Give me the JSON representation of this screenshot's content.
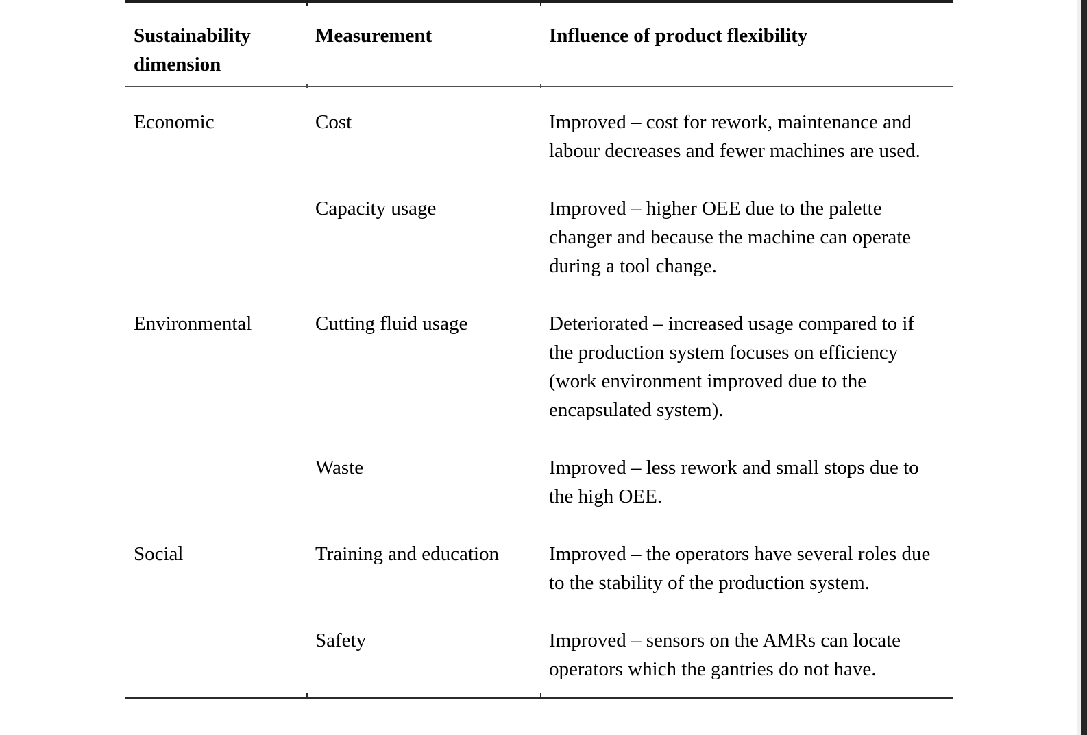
{
  "page": {
    "background_color": "#ffffff",
    "edge_bar_color": "#262626",
    "edge_line_color": "#f0f0f0",
    "text_color": "#000000",
    "rule_color": "#1e1e1e"
  },
  "table": {
    "columns": [
      "Sustainability dimension",
      "Measurement",
      "Influence of product flexibility"
    ],
    "rows": [
      {
        "dimension": "Economic",
        "measurement": "Cost",
        "influence": "Improved – cost for rework, maintenance and labour decreases and fewer machines are used."
      },
      {
        "dimension": "",
        "measurement": "Capacity usage",
        "influence": "Improved – higher OEE due to the palette changer and because the machine can operate during a tool change."
      },
      {
        "dimension": "Environmental",
        "measurement": "Cutting fluid usage",
        "influence": "Deteriorated – increased usage compared to if the production system focuses on efficiency (work environment improved due to the encapsulated system)."
      },
      {
        "dimension": "",
        "measurement": "Waste",
        "influence": "Improved – less rework and small stops due to the high OEE."
      },
      {
        "dimension": "Social",
        "measurement": "Training and education",
        "influence": "Improved – the operators have several roles due to the stability of the production system."
      },
      {
        "dimension": "",
        "measurement": "Safety",
        "influence": "Improved – sensors on the AMRs can locate operators which the gantries do not have."
      }
    ]
  }
}
